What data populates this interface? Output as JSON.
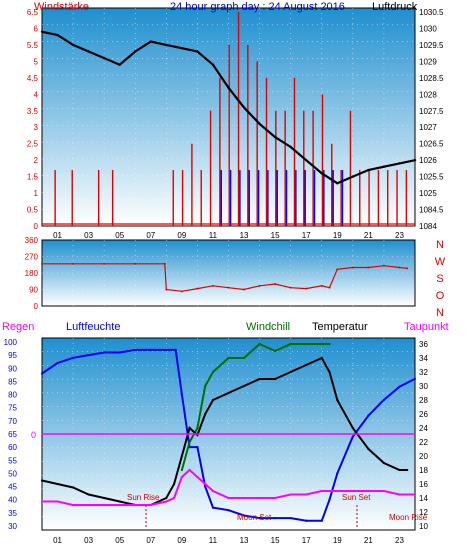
{
  "colors": {
    "wind": "#e00000",
    "gust_blue": "#0000ff",
    "pressure": "#000000",
    "humidity": "#0000ff",
    "windchill": "#007000",
    "temperature": "#000000",
    "dewpoint": "#ff00ff",
    "rain": "#ff00ff",
    "sky_top": "#1f8fcf",
    "sky_bottom": "#ffffff"
  },
  "header": {
    "windstaerke": "Windstärke",
    "title": "24 hour graph day : 24 August 2016",
    "luftdruck": "Luftdruck"
  },
  "wind_panel": {
    "y_ticks": [
      "6.5",
      "6",
      "5.5",
      "5",
      "4.5",
      "4",
      "3.5",
      "3",
      "2.5",
      "2",
      "1.5",
      "1",
      "0.5",
      "0"
    ],
    "right_ticks": [
      "1030.5",
      "1030",
      "1029.5",
      "1029",
      "1028.5",
      "1028",
      "1027.5",
      "1027",
      "1026.5",
      "1026",
      "1025.5",
      "1025",
      "1084.5",
      "1084"
    ],
    "x_ticks": [
      "01",
      "03",
      "05",
      "07",
      "09",
      "11",
      "13",
      "15",
      "17",
      "19",
      "21",
      "23"
    ]
  },
  "dir_panel": {
    "y_ticks": [
      "360",
      "270",
      "180",
      "90",
      "0"
    ],
    "compass": [
      "N",
      "W",
      "S",
      "O",
      "N"
    ]
  },
  "bottom_panel": {
    "regen": "Regen",
    "luftfeuchte": "Luftfeuchte",
    "windchill": "Windchill",
    "temperatur": "Temperatur",
    "taupunkt": "Taupunkt",
    "rain_zero": "0",
    "left_ticks": [
      "100",
      "95",
      "90",
      "85",
      "80",
      "75",
      "70",
      "65",
      "60",
      "55",
      "50",
      "45",
      "40",
      "35",
      "30"
    ],
    "right_ticks": [
      "36",
      "34",
      "32",
      "30",
      "28",
      "26",
      "24",
      "22",
      "20",
      "18",
      "16",
      "14",
      "12",
      "10"
    ],
    "x_ticks": [
      "01",
      "03",
      "05",
      "07",
      "09",
      "11",
      "13",
      "15",
      "17",
      "19",
      "21",
      "23"
    ],
    "sun_rise": "Sun Rise",
    "sun_set": "Sun Set",
    "moon_set": "Moon Set",
    "moon_rise": "Moon Rise"
  },
  "chart_data": [
    {
      "type": "line",
      "title": "24 hour graph day : 24 August 2016",
      "x_unit": "hour",
      "xlim": [
        0,
        24
      ],
      "series": [
        {
          "name": "Luftdruck",
          "axis": "right",
          "ylim": [
            1024,
            1030.5
          ],
          "x": [
            0,
            1,
            2,
            3,
            4,
            5,
            6,
            7,
            8,
            9,
            10,
            11,
            12,
            13,
            14,
            15,
            16,
            17,
            18,
            19,
            20,
            21,
            22,
            23,
            24
          ],
          "values": [
            1029.9,
            1029.8,
            1029.5,
            1029.3,
            1029.1,
            1028.9,
            1029.3,
            1029.6,
            1029.5,
            1029.4,
            1029.3,
            1028.9,
            1028.2,
            1027.6,
            1027.1,
            1026.7,
            1026.4,
            1026.0,
            1025.6,
            1025.3,
            1025.5,
            1025.7,
            1025.8,
            1025.9,
            1026.0
          ]
        }
      ],
      "bars": [
        {
          "name": "Windstärke",
          "ylim": [
            0,
            6.5
          ],
          "x": [
            0.8,
            1.9,
            3.6,
            4.5,
            8.4,
            9.0,
            9.6,
            10.2,
            10.8,
            11.4,
            12.0,
            12.6,
            13.2,
            13.8,
            14.4,
            15.0,
            15.6,
            16.2,
            16.8,
            17.4,
            18.0,
            18.6,
            19.2,
            19.8,
            20.4,
            21.0,
            21.6,
            22.2,
            22.8,
            23.4
          ],
          "values": [
            1.7,
            1.7,
            1.7,
            1.7,
            1.7,
            1.7,
            2.5,
            1.7,
            3.5,
            4.5,
            5.5,
            6.5,
            5.5,
            5.0,
            4.5,
            3.5,
            3.5,
            4.5,
            3.5,
            3.5,
            4.0,
            2.5,
            1.7,
            3.5,
            1.7,
            1.7,
            1.7,
            1.7,
            1.7,
            1.7
          ]
        }
      ]
    },
    {
      "type": "line",
      "title": "",
      "x_unit": "hour",
      "xlim": [
        0,
        24
      ],
      "ylim": [
        0,
        360
      ],
      "series": [
        {
          "name": "Windrichtung",
          "x": [
            0,
            2,
            4,
            6,
            7.9,
            8.0,
            9,
            10,
            11,
            12,
            13,
            14,
            15,
            16,
            17,
            18,
            18.5,
            19,
            20,
            21,
            22,
            23,
            23.5
          ],
          "values": [
            230,
            230,
            230,
            230,
            230,
            90,
            80,
            95,
            110,
            100,
            90,
            110,
            120,
            100,
            95,
            110,
            100,
            200,
            210,
            210,
            220,
            210,
            205
          ]
        }
      ]
    },
    {
      "type": "line",
      "title": "",
      "x_unit": "hour",
      "xlim": [
        0,
        24
      ],
      "series": [
        {
          "name": "Luftfeuchte",
          "axis": "left",
          "ylim": [
            30,
            100
          ],
          "x": [
            0,
            1,
            2,
            3,
            4,
            5,
            6,
            7,
            8,
            8.6,
            9,
            9.5,
            10,
            10.5,
            11,
            12,
            13,
            14,
            15,
            16,
            17,
            18,
            18.5,
            19,
            20,
            21,
            22,
            23,
            24
          ],
          "values": [
            88,
            92,
            94,
            95,
            96,
            96,
            97,
            97,
            97,
            97,
            80,
            60,
            60,
            45,
            37,
            36,
            34,
            33,
            33,
            33,
            32,
            32,
            40,
            50,
            64,
            72,
            78,
            83,
            86
          ]
        },
        {
          "name": "Windchill",
          "axis": "right",
          "ylim": [
            10,
            36
          ],
          "x": [
            9,
            9.5,
            10,
            10.5,
            11,
            12,
            13,
            14,
            15,
            16,
            17,
            18,
            18.5
          ],
          "values": [
            18,
            22,
            24,
            30,
            32,
            34,
            34,
            36,
            35,
            36,
            36,
            36,
            36
          ]
        },
        {
          "name": "Temperatur",
          "axis": "right",
          "ylim": [
            10,
            36
          ],
          "x": [
            0,
            1,
            2,
            3,
            4,
            5,
            6,
            7,
            8,
            8.5,
            9,
            9.5,
            10,
            10.5,
            11,
            12,
            13,
            14,
            15,
            16,
            17,
            18,
            18.5,
            19,
            20,
            21,
            22,
            23,
            23.5
          ],
          "values": [
            16.5,
            16,
            15.5,
            14.5,
            14,
            13.5,
            13,
            13,
            14,
            16,
            20,
            24,
            23,
            26,
            28,
            29,
            30,
            31,
            31,
            32,
            33,
            34,
            32,
            28,
            24,
            21,
            19,
            18,
            18
          ]
        },
        {
          "name": "Taupunkt",
          "axis": "right",
          "ylim": [
            10,
            36
          ],
          "x": [
            0,
            1,
            2,
            3,
            4,
            5,
            6,
            7,
            8,
            8.5,
            9,
            9.5,
            10,
            10.5,
            11,
            12,
            13,
            14,
            15,
            16,
            17,
            18,
            19,
            20,
            21,
            22,
            23,
            24
          ],
          "values": [
            13.5,
            13.5,
            13,
            13,
            13,
            13,
            13,
            13,
            13.5,
            14,
            17,
            18,
            17,
            16,
            15,
            14,
            14,
            14,
            14,
            14.5,
            14.5,
            15,
            15,
            15,
            15,
            15,
            14.5,
            14.5
          ]
        },
        {
          "name": "Regen",
          "axis": "left-inner",
          "values": [
            0,
            0,
            0
          ]
        }
      ]
    }
  ]
}
